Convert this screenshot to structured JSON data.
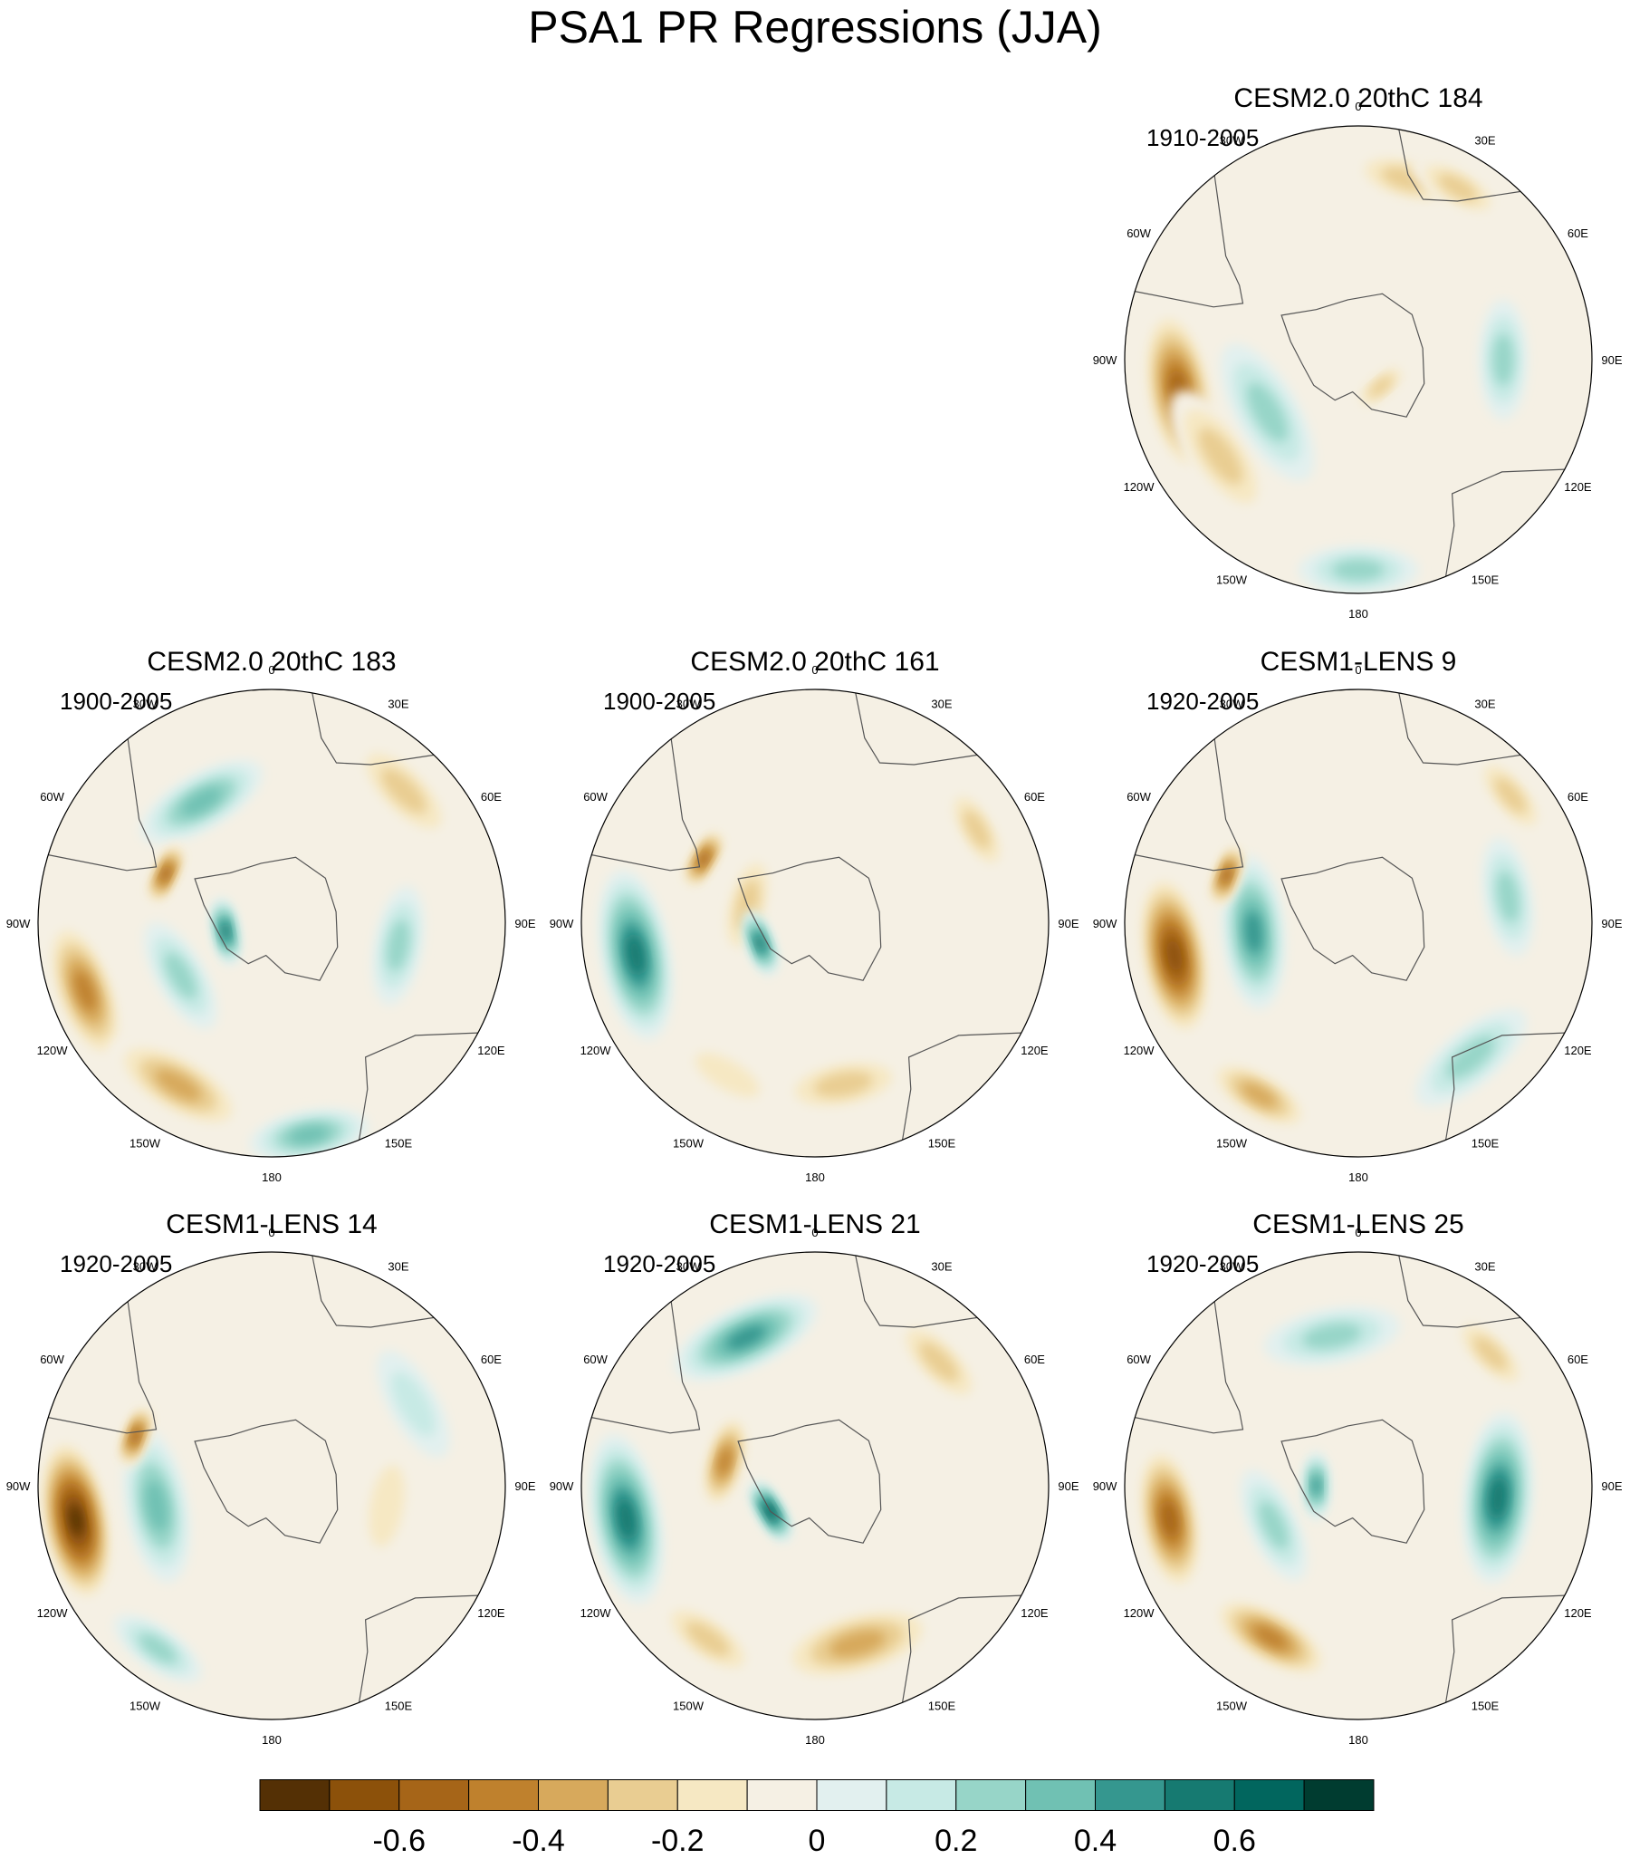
{
  "title": "PSA1 PR Regressions (JJA)",
  "chart_data": [
    {
      "type": "heatmap",
      "projection": "south-polar-stereographic",
      "title": "CESM2.0 20thC 184",
      "period": "1910-2005",
      "longitude_labels": [
        "0",
        "30E",
        "60E",
        "90E",
        "120E",
        "150E",
        "180",
        "150W",
        "120W",
        "90W",
        "60W",
        "30W"
      ],
      "features": [
        {
          "lon": -100,
          "dist": 0.78,
          "value": -0.6,
          "size": 1.0
        },
        {
          "lon": -125,
          "dist": 0.72,
          "value": -0.35,
          "size": 0.9
        },
        {
          "lon": -120,
          "dist": 0.45,
          "value": 0.35,
          "size": 0.9
        },
        {
          "lon": 15,
          "dist": 0.8,
          "value": -0.3,
          "size": 0.7
        },
        {
          "lon": 90,
          "dist": 0.62,
          "value": 0.25,
          "size": 0.7
        },
        {
          "lon": 180,
          "dist": 0.9,
          "value": 0.3,
          "size": 0.7
        },
        {
          "lon": 30,
          "dist": 0.85,
          "value": -0.25,
          "size": 0.6
        },
        {
          "lon": 140,
          "dist": 0.15,
          "value": -0.3,
          "size": 0.4
        }
      ]
    },
    {
      "type": "heatmap",
      "projection": "south-polar-stereographic",
      "title": "CESM2.0 20thC 183",
      "period": "1900-2005",
      "longitude_labels": [
        "0",
        "30E",
        "60E",
        "90E",
        "120E",
        "150E",
        "180",
        "150W",
        "120W",
        "90W",
        "60W",
        "30W"
      ],
      "features": [
        {
          "lon": -110,
          "dist": 0.85,
          "value": -0.45,
          "size": 0.9
        },
        {
          "lon": -150,
          "dist": 0.8,
          "value": -0.4,
          "size": 0.9
        },
        {
          "lon": -30,
          "dist": 0.6,
          "value": 0.4,
          "size": 0.8
        },
        {
          "lon": 45,
          "dist": 0.8,
          "value": -0.35,
          "size": 0.8
        },
        {
          "lon": 170,
          "dist": 0.92,
          "value": 0.4,
          "size": 0.7
        },
        {
          "lon": -120,
          "dist": 0.45,
          "value": 0.3,
          "size": 0.7
        },
        {
          "lon": -65,
          "dist": 0.5,
          "value": -0.6,
          "size": 0.4
        },
        {
          "lon": -100,
          "dist": 0.2,
          "value": 0.6,
          "size": 0.4
        },
        {
          "lon": 100,
          "dist": 0.55,
          "value": 0.25,
          "size": 0.7
        }
      ]
    },
    {
      "type": "heatmap",
      "projection": "south-polar-stereographic",
      "title": "CESM2.0 20thC 161",
      "period": "1900-2005",
      "longitude_labels": [
        "0",
        "30E",
        "60E",
        "90E",
        "120E",
        "150E",
        "180",
        "150W",
        "120W",
        "90W",
        "60W",
        "30W"
      ],
      "features": [
        {
          "lon": -100,
          "dist": 0.78,
          "value": 0.55,
          "size": 1.0
        },
        {
          "lon": -75,
          "dist": 0.3,
          "value": -0.35,
          "size": 0.7
        },
        {
          "lon": -60,
          "dist": 0.55,
          "value": -0.6,
          "size": 0.4
        },
        {
          "lon": -110,
          "dist": 0.25,
          "value": 0.6,
          "size": 0.4
        },
        {
          "lon": 60,
          "dist": 0.8,
          "value": -0.3,
          "size": 0.6
        },
        {
          "lon": 170,
          "dist": 0.7,
          "value": -0.25,
          "size": 0.8
        },
        {
          "lon": -150,
          "dist": 0.75,
          "value": -0.2,
          "size": 0.7
        }
      ]
    },
    {
      "type": "heatmap",
      "projection": "south-polar-stereographic",
      "title": "CESM1-LENS 9",
      "period": "1920-2005",
      "longitude_labels": [
        "0",
        "30E",
        "60E",
        "90E",
        "120E",
        "150E",
        "180",
        "150W",
        "120W",
        "90W",
        "60W",
        "30W"
      ],
      "features": [
        {
          "lon": -100,
          "dist": 0.8,
          "value": -0.65,
          "size": 1.0
        },
        {
          "lon": -95,
          "dist": 0.45,
          "value": 0.45,
          "size": 0.9
        },
        {
          "lon": -70,
          "dist": 0.6,
          "value": -0.6,
          "size": 0.4
        },
        {
          "lon": 140,
          "dist": 0.75,
          "value": 0.35,
          "size": 0.8
        },
        {
          "lon": -150,
          "dist": 0.85,
          "value": -0.4,
          "size": 0.7
        },
        {
          "lon": 80,
          "dist": 0.65,
          "value": 0.3,
          "size": 0.7
        },
        {
          "lon": 50,
          "dist": 0.85,
          "value": -0.3,
          "size": 0.6
        }
      ]
    },
    {
      "type": "heatmap",
      "projection": "south-polar-stereographic",
      "title": "CESM1-LENS 14",
      "period": "1920-2005",
      "longitude_labels": [
        "0",
        "30E",
        "60E",
        "90E",
        "120E",
        "150E",
        "180",
        "150W",
        "120W",
        "90W",
        "60W",
        "30W"
      ],
      "features": [
        {
          "lon": -100,
          "dist": 0.85,
          "value": -0.75,
          "size": 1.0
        },
        {
          "lon": -100,
          "dist": 0.5,
          "value": 0.4,
          "size": 0.9
        },
        {
          "lon": -70,
          "dist": 0.62,
          "value": -0.6,
          "size": 0.4
        },
        {
          "lon": -145,
          "dist": 0.85,
          "value": 0.3,
          "size": 0.6
        },
        {
          "lon": 100,
          "dist": 0.5,
          "value": -0.2,
          "size": 0.8
        },
        {
          "lon": 60,
          "dist": 0.7,
          "value": 0.2,
          "size": 0.7
        }
      ]
    },
    {
      "type": "heatmap",
      "projection": "south-polar-stereographic",
      "title": "CESM1-LENS 21",
      "period": "1920-2005",
      "longitude_labels": [
        "0",
        "30E",
        "60E",
        "90E",
        "120E",
        "150E",
        "180",
        "150W",
        "120W",
        "90W",
        "60W",
        "30W"
      ],
      "features": [
        {
          "lon": -100,
          "dist": 0.82,
          "value": 0.55,
          "size": 1.0
        },
        {
          "lon": -25,
          "dist": 0.7,
          "value": 0.45,
          "size": 0.9
        },
        {
          "lon": -75,
          "dist": 0.4,
          "value": -0.5,
          "size": 0.6
        },
        {
          "lon": -120,
          "dist": 0.22,
          "value": 0.65,
          "size": 0.4
        },
        {
          "lon": 165,
          "dist": 0.7,
          "value": -0.4,
          "size": 1.0
        },
        {
          "lon": 45,
          "dist": 0.75,
          "value": -0.35,
          "size": 0.7
        },
        {
          "lon": -145,
          "dist": 0.8,
          "value": -0.3,
          "size": 0.7
        }
      ]
    },
    {
      "type": "heatmap",
      "projection": "south-polar-stereographic",
      "title": "CESM1-LENS 25",
      "period": "1920-2005",
      "longitude_labels": [
        "0",
        "30E",
        "60E",
        "90E",
        "120E",
        "150E",
        "180",
        "150W",
        "120W",
        "90W",
        "60W",
        "30W"
      ],
      "features": [
        {
          "lon": -100,
          "dist": 0.82,
          "value": -0.55,
          "size": 0.9
        },
        {
          "lon": 95,
          "dist": 0.6,
          "value": 0.55,
          "size": 1.0
        },
        {
          "lon": -150,
          "dist": 0.75,
          "value": -0.45,
          "size": 0.8
        },
        {
          "lon": -10,
          "dist": 0.65,
          "value": 0.3,
          "size": 0.8
        },
        {
          "lon": -115,
          "dist": 0.4,
          "value": 0.3,
          "size": 0.7
        },
        {
          "lon": 45,
          "dist": 0.8,
          "value": -0.3,
          "size": 0.6
        },
        {
          "lon": -90,
          "dist": 0.18,
          "value": 0.45,
          "size": 0.4
        }
      ]
    }
  ],
  "colorbar": {
    "colors": [
      "#543005",
      "#8c510a",
      "#a66518",
      "#bf812d",
      "#d7a95c",
      "#e9cd92",
      "#f6e8c3",
      "#f5f0e4",
      "#e2f0ef",
      "#c7eae5",
      "#97d5c8",
      "#70c1b3",
      "#35978f",
      "#167a71",
      "#01665e",
      "#003c30"
    ],
    "tick_labels": [
      "-0.6",
      "-0.4",
      "-0.2",
      "0",
      "0.2",
      "0.4",
      "0.6"
    ]
  }
}
